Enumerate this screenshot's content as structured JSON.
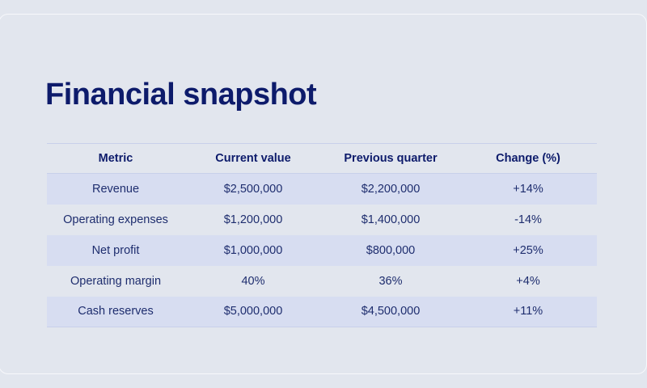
{
  "title": "Financial snapshot",
  "table": {
    "headers": [
      "Metric",
      "Current value",
      "Previous quarter",
      "Change (%)"
    ],
    "rows": [
      [
        "Revenue",
        "$2,500,000",
        "$2,200,000",
        "+14%"
      ],
      [
        "Operating expenses",
        "$1,200,000",
        "$1,400,000",
        "-14%"
      ],
      [
        "Net profit",
        "$1,000,000",
        "$800,000",
        "+25%"
      ],
      [
        "Operating margin",
        "40%",
        "36%",
        "+4%"
      ],
      [
        "Cash reserves",
        "$5,000,000",
        "$4,500,000",
        "+11%"
      ]
    ]
  },
  "colors": {
    "background": "#e2e6ee",
    "title": "#0d1b6b",
    "text": "#1e2d6e",
    "row_stripe": "#d7ddf1",
    "divider": "#c8d0ea"
  }
}
